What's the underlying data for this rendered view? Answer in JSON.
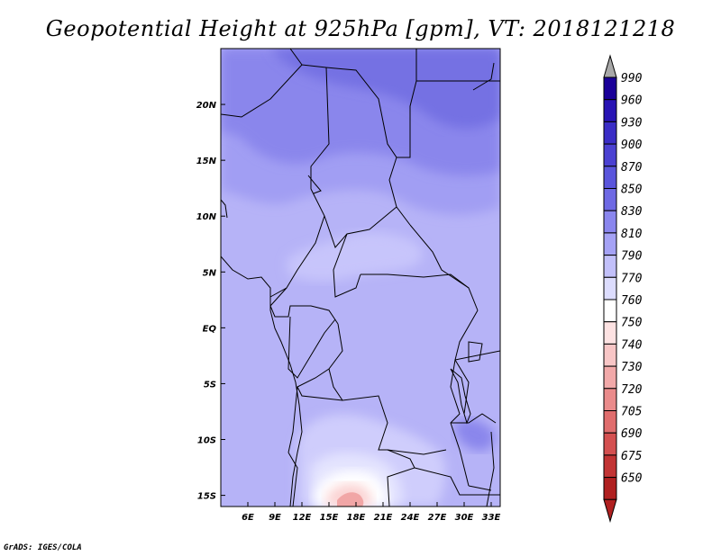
{
  "title": "Geopotential Height at 925hPa [gpm], VT: 2018121218",
  "credit": "GrADS: IGES/COLA",
  "map": {
    "lon_range": [
      3,
      34
    ],
    "lat_range": [
      -16,
      25
    ],
    "x_ticks": [
      "6E",
      "9E",
      "12E",
      "15E",
      "18E",
      "21E",
      "24E",
      "27E",
      "30E",
      "33E"
    ],
    "y_ticks": [
      "20N",
      "15N",
      "10N",
      "5N",
      "EQ",
      "5S",
      "10S",
      "15S"
    ],
    "field_levels_gpm": {
      "north_max": 850,
      "sahel": 830,
      "central": 810,
      "south_center_min": 730
    }
  },
  "colorbar": {
    "levels": [
      "990",
      "960",
      "930",
      "900",
      "870",
      "850",
      "830",
      "810",
      "790",
      "770",
      "760",
      "750",
      "740",
      "730",
      "720",
      "705",
      "690",
      "675",
      "650"
    ],
    "colors": [
      "#1a0099",
      "#2814b4",
      "#3a2dc6",
      "#4b41d2",
      "#5a55dc",
      "#6e69e4",
      "#8a86ee",
      "#a5a2f5",
      "#c2c0fa",
      "#dcdcfd",
      "#ffffff",
      "#fde2e2",
      "#f8c6c6",
      "#f2a9a9",
      "#ea8b8b",
      "#e06d6d",
      "#d45050",
      "#c23434",
      "#b02020"
    ],
    "top_arrow_color": "#a8a8a8",
    "bottom_arrow_color": "#b02020"
  }
}
